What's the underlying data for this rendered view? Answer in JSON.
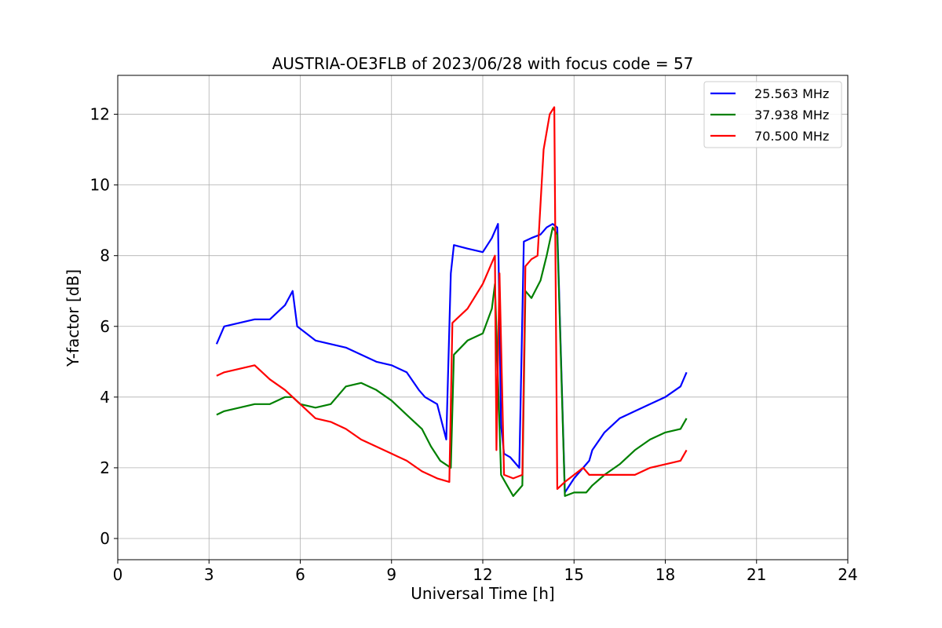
{
  "chart_data": {
    "type": "line",
    "title": "AUSTRIA-OE3FLB of 2023/06/28 with focus code = 57",
    "xlabel": "Universal Time [h]",
    "ylabel": "Y-factor [dB]",
    "xlim": [
      0,
      24
    ],
    "ylim": [
      -0.6,
      13.1
    ],
    "xticks": [
      0,
      3,
      6,
      9,
      12,
      15,
      18,
      21,
      24
    ],
    "xtick_labels": [
      "0",
      "3",
      "6",
      "9",
      "12",
      "15",
      "18",
      "21",
      "24"
    ],
    "yticks": [
      0,
      2,
      4,
      6,
      8,
      10,
      12
    ],
    "ytick_labels": [
      "0",
      "2",
      "4",
      "6",
      "8",
      "10",
      "12"
    ],
    "grid": true,
    "legend_position": "top-right",
    "series": [
      {
        "name": "25.563 MHz",
        "color": "#0000ff",
        "x": [
          3.25,
          3.5,
          4.0,
          4.5,
          5.0,
          5.5,
          5.75,
          5.9,
          6.2,
          6.5,
          7.0,
          7.5,
          7.75,
          8.0,
          8.5,
          9.0,
          9.5,
          9.9,
          10.1,
          10.5,
          10.8,
          10.95,
          11.05,
          11.5,
          12.0,
          12.3,
          12.5,
          12.6,
          12.7,
          12.9,
          13.2,
          13.35,
          13.6,
          13.9,
          14.1,
          14.3,
          14.45,
          14.7,
          15.0,
          15.5,
          15.6,
          16.0,
          16.5,
          17.0,
          17.5,
          18.0,
          18.5,
          18.7
        ],
        "y": [
          5.5,
          6.0,
          6.1,
          6.2,
          6.2,
          6.6,
          7.0,
          6.0,
          5.8,
          5.6,
          5.5,
          5.4,
          5.3,
          5.2,
          5.0,
          4.9,
          4.7,
          4.2,
          4.0,
          3.8,
          2.8,
          7.5,
          8.3,
          8.2,
          8.1,
          8.5,
          8.9,
          3.2,
          2.4,
          2.3,
          2.0,
          8.4,
          8.5,
          8.6,
          8.8,
          8.9,
          8.8,
          1.3,
          1.7,
          2.2,
          2.5,
          3.0,
          3.4,
          3.6,
          3.8,
          4.0,
          4.3,
          4.7
        ]
      },
      {
        "name": "37.938 MHz",
        "color": "#008000",
        "x": [
          3.25,
          3.5,
          4.0,
          4.5,
          5.0,
          5.5,
          5.75,
          6.0,
          6.5,
          7.0,
          7.5,
          8.0,
          8.5,
          9.0,
          9.5,
          10.0,
          10.3,
          10.6,
          10.95,
          11.05,
          11.5,
          12.0,
          12.3,
          12.4,
          12.6,
          12.8,
          13.0,
          13.3,
          13.4,
          13.6,
          13.9,
          14.1,
          14.3,
          14.45,
          14.7,
          15.0,
          15.4,
          15.6,
          16.0,
          16.5,
          17.0,
          17.5,
          18.0,
          18.5,
          18.7
        ],
        "y": [
          3.5,
          3.6,
          3.7,
          3.8,
          3.8,
          4.0,
          4.0,
          3.8,
          3.7,
          3.8,
          4.3,
          4.4,
          4.2,
          3.9,
          3.5,
          3.1,
          2.6,
          2.2,
          2.0,
          5.2,
          5.6,
          5.8,
          6.5,
          7.2,
          1.8,
          1.5,
          1.2,
          1.5,
          7.0,
          6.8,
          7.3,
          8.0,
          8.8,
          8.6,
          1.2,
          1.3,
          1.3,
          1.5,
          1.8,
          2.1,
          2.5,
          2.8,
          3.0,
          3.1,
          3.4
        ]
      },
      {
        "name": "70.500 MHz",
        "color": "#ff0000",
        "x": [
          3.25,
          3.5,
          4.0,
          4.5,
          5.0,
          5.5,
          6.0,
          6.5,
          7.0,
          7.5,
          8.0,
          8.5,
          9.0,
          9.5,
          10.0,
          10.5,
          10.9,
          11.0,
          11.5,
          12.0,
          12.3,
          12.4,
          12.45,
          12.55,
          12.7,
          13.0,
          13.3,
          13.4,
          13.6,
          13.8,
          14.0,
          14.2,
          14.35,
          14.45,
          14.7,
          15.0,
          15.3,
          15.5,
          16.0,
          16.5,
          17.0,
          17.5,
          18.0,
          18.5,
          18.7
        ],
        "y": [
          4.6,
          4.7,
          4.8,
          4.9,
          4.5,
          4.2,
          3.8,
          3.4,
          3.3,
          3.1,
          2.8,
          2.6,
          2.4,
          2.2,
          1.9,
          1.7,
          1.6,
          6.1,
          6.5,
          7.2,
          7.8,
          8.0,
          2.5,
          7.5,
          1.8,
          1.7,
          1.8,
          7.7,
          7.9,
          8.0,
          11.0,
          12.0,
          12.2,
          1.4,
          1.6,
          1.8,
          2.0,
          1.8,
          1.8,
          1.8,
          1.8,
          2.0,
          2.1,
          2.2,
          2.5
        ]
      }
    ]
  }
}
